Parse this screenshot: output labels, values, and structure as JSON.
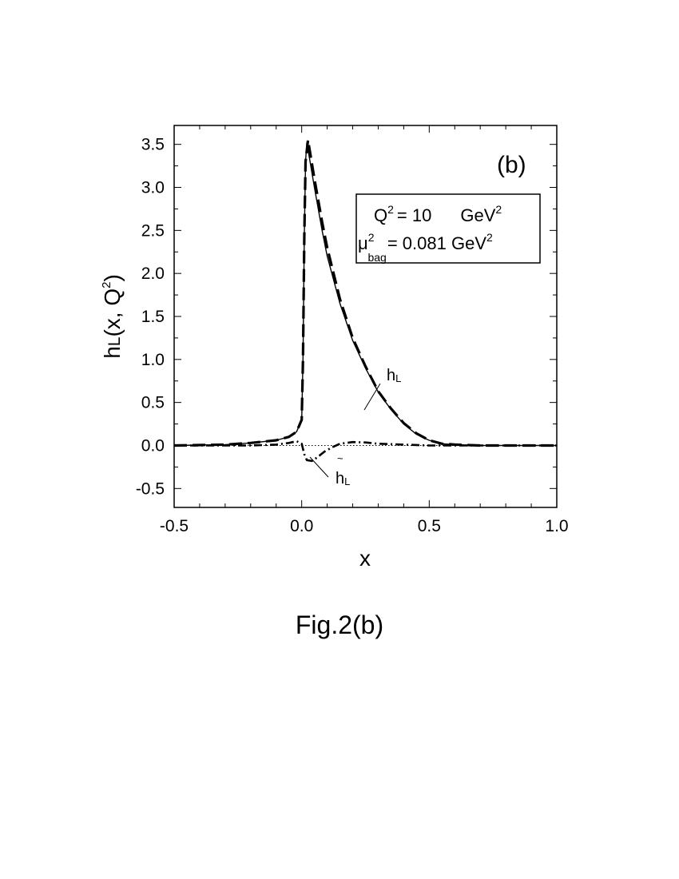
{
  "chart_data": {
    "type": "line",
    "panel_label": "(b)",
    "xlabel": "x",
    "ylabel": {
      "main": "h",
      "sub": "L",
      "rest": "(x, Q",
      "sup": "2",
      "close": ")"
    },
    "xlim": [
      -0.5,
      1.0
    ],
    "ylim": [
      -0.72,
      3.72
    ],
    "xticks": [
      -0.5,
      0.0,
      0.5,
      1.0
    ],
    "xtick_labels": [
      "-0.5",
      "0.0",
      "0.5",
      "1.0"
    ],
    "yticks": [
      -0.5,
      0.0,
      0.5,
      1.0,
      1.5,
      2.0,
      2.5,
      3.0,
      3.5
    ],
    "ytick_labels": [
      "-0.5",
      "0.0",
      "0.5",
      "1.0",
      "1.5",
      "2.0",
      "2.5",
      "3.0",
      "3.5"
    ],
    "grid": false,
    "legend": {
      "placement": "top-right",
      "line1": {
        "q": "Q",
        "q_sup": "2",
        "eq": "= 10",
        "unit": "GeV",
        "unit_sup": "2"
      },
      "line2": {
        "mu": "μ",
        "mu_sup": "2",
        "mu_sub": "bag",
        "eq": "= 0.081 GeV",
        "unit_sup": "2"
      }
    },
    "annotations": [
      {
        "text": "h",
        "sub": "L",
        "tilde": ""
      },
      {
        "text": "h",
        "sub": "L",
        "tilde": "~"
      }
    ],
    "series": [
      {
        "style": "solid",
        "x": [
          -0.5,
          -0.3,
          -0.2,
          -0.1,
          -0.05,
          -0.02,
          0.0,
          0.005,
          0.01,
          0.015,
          0.02,
          0.05,
          0.08,
          0.1,
          0.15,
          0.2,
          0.25,
          0.3,
          0.35,
          0.4,
          0.45,
          0.5,
          0.55,
          0.6,
          0.7,
          0.8,
          1.0
        ],
        "y": [
          0.0,
          0.01,
          0.03,
          0.06,
          0.1,
          0.16,
          0.3,
          1.0,
          2.4,
          3.3,
          3.52,
          3.0,
          2.5,
          2.2,
          1.65,
          1.22,
          0.9,
          0.62,
          0.42,
          0.25,
          0.13,
          0.06,
          0.02,
          0.01,
          0.0,
          0.0,
          0.0
        ]
      },
      {
        "style": "dashed",
        "x": [
          -0.5,
          -0.3,
          -0.2,
          -0.1,
          -0.05,
          -0.02,
          0.0,
          0.005,
          0.01,
          0.015,
          0.025,
          0.05,
          0.08,
          0.1,
          0.15,
          0.2,
          0.25,
          0.3,
          0.35,
          0.4,
          0.45,
          0.5,
          0.55,
          0.6,
          0.7,
          0.8,
          1.0
        ],
        "y": [
          0.0,
          0.01,
          0.03,
          0.06,
          0.1,
          0.16,
          0.3,
          1.0,
          2.4,
          3.3,
          3.55,
          3.1,
          2.6,
          2.3,
          1.7,
          1.25,
          0.92,
          0.63,
          0.43,
          0.26,
          0.14,
          0.06,
          0.02,
          0.01,
          0.0,
          0.0,
          0.0
        ]
      },
      {
        "style": "dashdot",
        "x": [
          -0.5,
          -0.3,
          -0.2,
          -0.1,
          -0.05,
          -0.02,
          0.0,
          0.01,
          0.02,
          0.04,
          0.06,
          0.09,
          0.12,
          0.15,
          0.2,
          0.25,
          0.3,
          0.4,
          0.5,
          0.6,
          0.8,
          1.0
        ],
        "y": [
          0.0,
          0.0,
          0.0,
          0.01,
          0.03,
          0.05,
          0.02,
          -0.1,
          -0.17,
          -0.18,
          -0.14,
          -0.07,
          -0.02,
          0.02,
          0.04,
          0.035,
          0.02,
          0.01,
          0.0,
          0.0,
          0.0,
          0.0
        ]
      },
      {
        "style": "dotted",
        "x": [
          -0.5,
          1.0
        ],
        "y": [
          0.0,
          0.0
        ]
      }
    ]
  },
  "caption": "Fig.2(b)"
}
